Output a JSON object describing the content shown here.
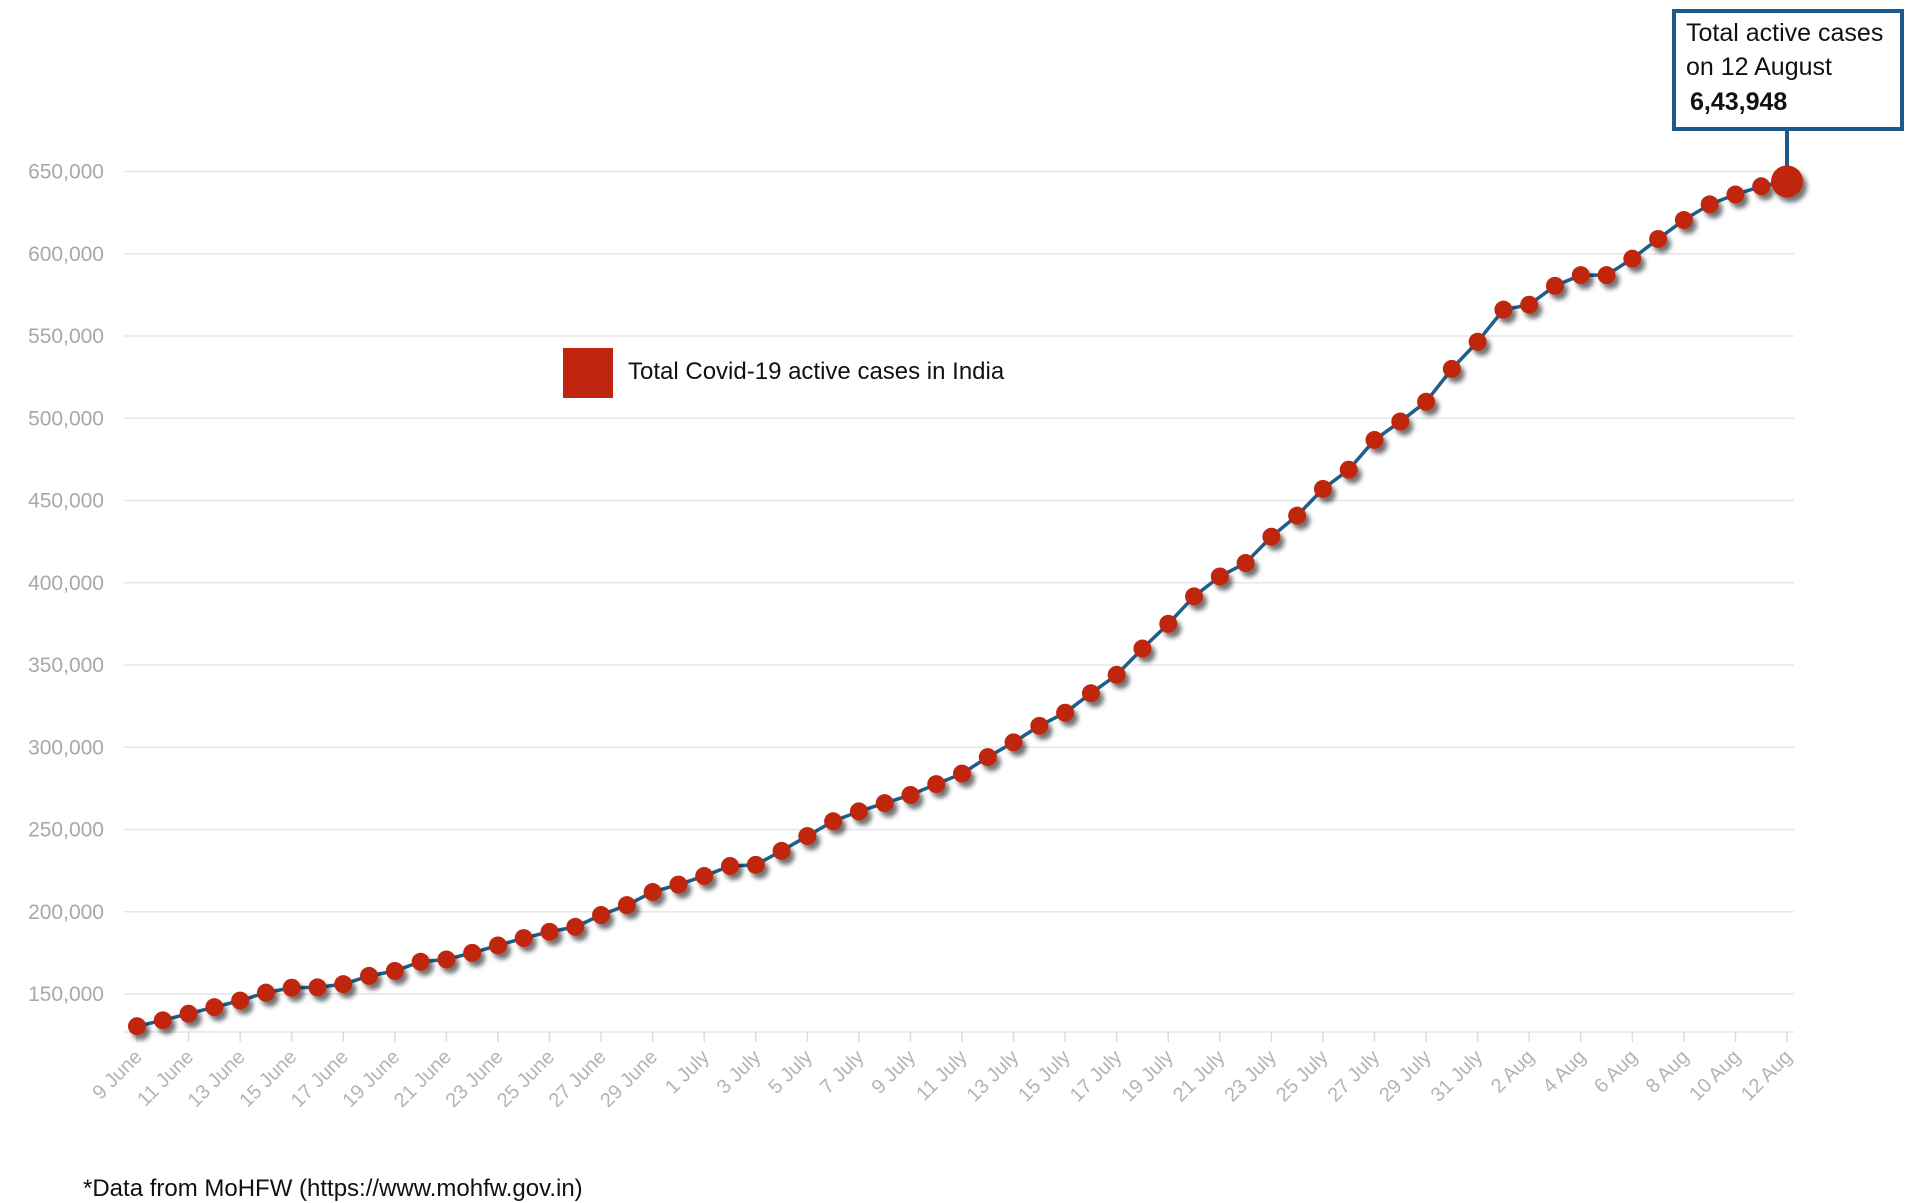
{
  "chart_data": {
    "type": "line",
    "title": "",
    "xlabel": "",
    "ylabel": "",
    "ylim": [
      125000,
      655000
    ],
    "yticks": [
      150000,
      200000,
      250000,
      300000,
      350000,
      400000,
      450000,
      500000,
      550000,
      600000,
      650000
    ],
    "ytick_labels": [
      "150,000",
      "200,000",
      "250,000",
      "300,000",
      "350,000",
      "400,000",
      "450,000",
      "500,000",
      "550,000",
      "600,000",
      "650,000"
    ],
    "grid": "horizontal",
    "legend_position": "upper-left-center",
    "x_tick_labels": [
      "9 June",
      "11 June",
      "13 June",
      "15 June",
      "17 June",
      "19 June",
      "21 June",
      "23 June",
      "25 June",
      "27 June",
      "29 June",
      "1 July",
      "3 July",
      "5 July",
      "7 July",
      "9 July",
      "11 July",
      "13 July",
      "15 July",
      "17 July",
      "19 July",
      "21 July",
      "23 July",
      "25 July",
      "27 July",
      "29 July",
      "31 July",
      "2 Aug",
      "4 Aug",
      "6 Aug",
      "8 Aug",
      "10 Aug",
      "12 Aug"
    ],
    "x": [
      "9 June",
      "10 June",
      "11 June",
      "12 June",
      "13 June",
      "14 June",
      "15 June",
      "16 June",
      "17 June",
      "18 June",
      "19 June",
      "20 June",
      "21 June",
      "22 June",
      "23 June",
      "24 June",
      "25 June",
      "26 June",
      "27 June",
      "28 June",
      "29 June",
      "30 June",
      "1 July",
      "2 July",
      "3 July",
      "4 July",
      "5 July",
      "6 July",
      "7 July",
      "8 July",
      "9 July",
      "10 July",
      "11 July",
      "12 July",
      "13 July",
      "14 July",
      "15 July",
      "16 July",
      "17 July",
      "18 July",
      "19 July",
      "20 July",
      "21 July",
      "22 July",
      "23 July",
      "24 July",
      "25 July",
      "26 July",
      "27 July",
      "28 July",
      "29 July",
      "30 July",
      "31 July",
      "1 Aug",
      "2 Aug",
      "3 Aug",
      "4 Aug",
      "5 Aug",
      "6 Aug",
      "7 Aug",
      "8 Aug",
      "9 Aug",
      "10 Aug",
      "11 Aug",
      "12 Aug"
    ],
    "series": [
      {
        "name": "Total Covid-19 active cases in India",
        "color": "#c0260f",
        "line_color": "#1f5f8b",
        "values": [
          130400,
          134000,
          138000,
          142000,
          146000,
          150800,
          153800,
          154000,
          156000,
          161000,
          164000,
          169600,
          171000,
          175000,
          179500,
          184000,
          187800,
          190800,
          198000,
          204000,
          212000,
          216500,
          221700,
          227800,
          228500,
          237000,
          246000,
          255000,
          261000,
          266000,
          271000,
          277600,
          284000,
          294000,
          303000,
          313000,
          321000,
          332800,
          344000,
          360000,
          375000,
          391700,
          403800,
          412000,
          428000,
          440800,
          457000,
          468700,
          486800,
          498000,
          510000,
          530000,
          546500,
          566000,
          569000,
          580500,
          587000,
          587000,
          597000,
          609000,
          620500,
          630000,
          636000,
          641000,
          643948
        ]
      }
    ],
    "annotation": {
      "line1": "Total active cases",
      "line2": "on 12 August",
      "value": "6,43,948",
      "border_color": "#1f5a8c"
    }
  },
  "legend": {
    "label": "Total Covid-19 active cases in India"
  },
  "footer": "*Data from MoHFW (https://www.mohfw.gov.in)"
}
